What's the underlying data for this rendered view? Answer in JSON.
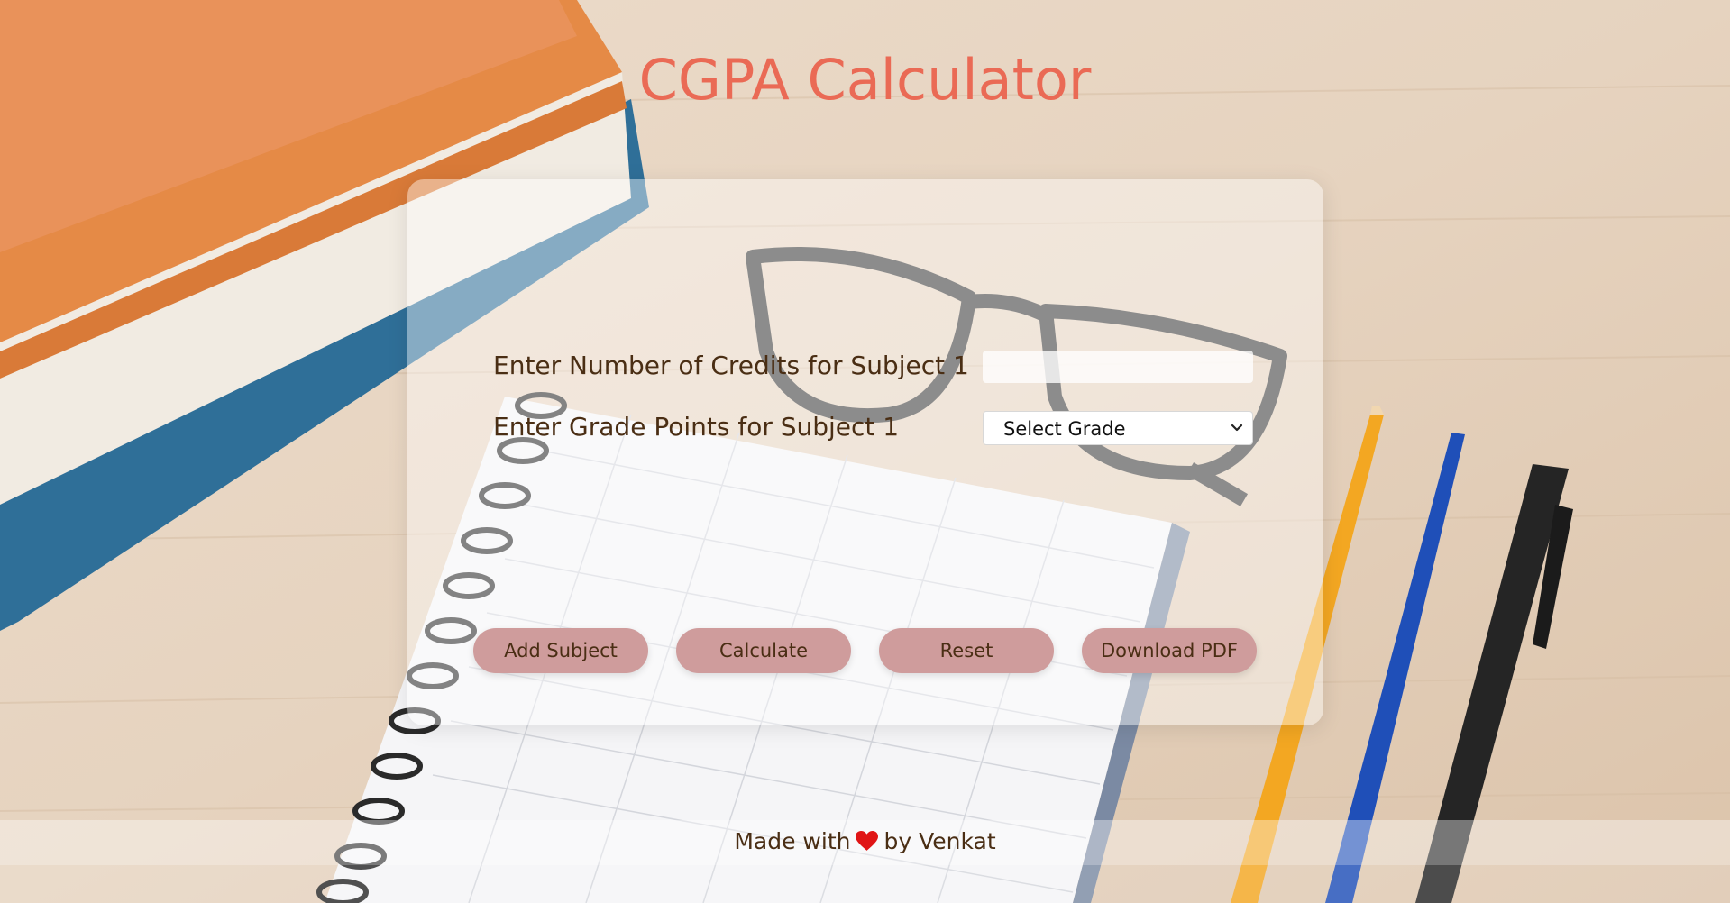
{
  "page": {
    "title": "CGPA Calculator",
    "title_color": "#ea6a55"
  },
  "form": {
    "credits_label": "Enter Number of Credits for Subject 1",
    "credits_value": "",
    "grade_label": "Enter Grade Points for Subject 1",
    "grade_selected": "Select Grade"
  },
  "buttons": {
    "add_subject": "Add Subject",
    "calculate": "Calculate",
    "reset": "Reset",
    "download_pdf": "Download PDF",
    "color": "#cf9c9c"
  },
  "footer": {
    "prefix": "Made with",
    "suffix": "by Venkat",
    "heart_icon": "heart-icon",
    "heart_color": "#e01515"
  }
}
